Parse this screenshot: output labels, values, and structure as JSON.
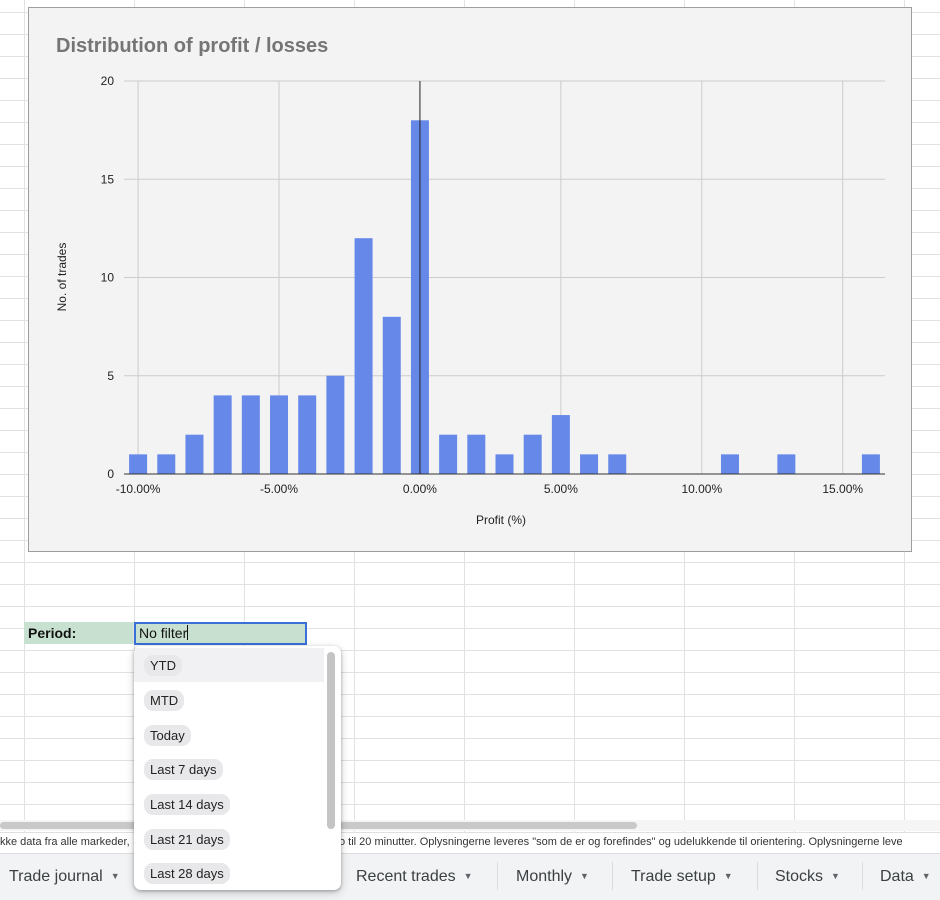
{
  "chart_data": {
    "type": "bar",
    "title": "Distribution of profit / losses",
    "xlabel": "Profit (%)",
    "ylabel": "No. of trades",
    "xlim": [
      -10.5,
      16.5
    ],
    "ylim": [
      0,
      20
    ],
    "yticks": [
      0,
      5,
      10,
      15,
      20
    ],
    "xticks": [
      -10,
      -5,
      0,
      5,
      10,
      15
    ],
    "xtick_labels": [
      "-10.00%",
      "-5.00%",
      "0.00%",
      "5.00%",
      "10.00%",
      "15.00%"
    ],
    "grid": true,
    "bar_color": "#6688e8",
    "x": [
      -10,
      -9,
      -8,
      -7,
      -6,
      -5,
      -4,
      -3,
      -2,
      -1,
      0,
      1,
      2,
      3,
      4,
      5,
      6,
      7,
      11,
      13,
      16
    ],
    "values": [
      1,
      1,
      2,
      4,
      4,
      4,
      4,
      5,
      12,
      8,
      18,
      2,
      2,
      1,
      2,
      3,
      1,
      1,
      1,
      1,
      1
    ]
  },
  "period": {
    "label": "Period:",
    "value": "No filter"
  },
  "dropdown": {
    "options": [
      "YTD",
      "MTD",
      "Today",
      "Last 7 days",
      "Last 14 days",
      "Last 21 days",
      "Last 28 days"
    ]
  },
  "disclaimer": {
    "left": "kke data fra alle markeder,",
    "right": "o til 20 minutter. Oplysningerne leveres \"som de er og forefindes\" og udelukkende til orientering. Oplysningerne leve"
  },
  "tabs": [
    "Trade journal",
    "Recent trades",
    "Monthly",
    "Trade setup",
    "Stocks",
    "Data"
  ],
  "colors": {
    "accent": "#3a6fd8",
    "cell_fill": "#c8e0cf",
    "bar": "#6688e8"
  }
}
